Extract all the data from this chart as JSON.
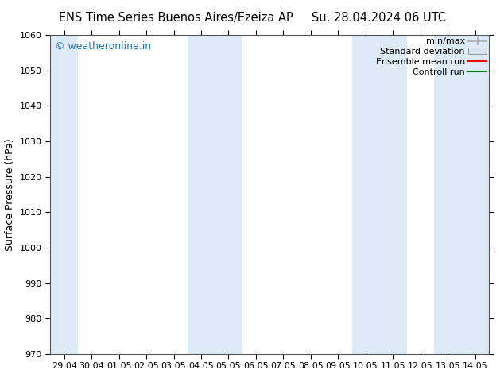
{
  "title_left": "ENS Time Series Buenos Aires/Ezeiza AP",
  "title_right": "Su. 28.04.2024 06 UTC",
  "ylabel": "Surface Pressure (hPa)",
  "ylim": [
    970,
    1060
  ],
  "yticks": [
    970,
    980,
    990,
    1000,
    1010,
    1020,
    1030,
    1040,
    1050,
    1060
  ],
  "xtick_labels": [
    "29.04",
    "30.04",
    "01.05",
    "02.05",
    "03.05",
    "04.05",
    "05.05",
    "06.05",
    "07.05",
    "08.05",
    "09.05",
    "10.05",
    "11.05",
    "12.05",
    "13.05",
    "14.05"
  ],
  "xtick_positions": [
    0,
    1,
    2,
    3,
    4,
    5,
    6,
    7,
    8,
    9,
    10,
    11,
    12,
    13,
    14,
    15
  ],
  "xlim": [
    -0.5,
    15.5
  ],
  "shaded_regions": [
    {
      "xmin": -0.5,
      "xmax": 0.5,
      "color": "#ddeaf7"
    },
    {
      "xmin": 4.5,
      "xmax": 6.5,
      "color": "#ddeaf7"
    },
    {
      "xmin": 10.5,
      "xmax": 12.5,
      "color": "#ddeaf7"
    },
    {
      "xmin": 13.5,
      "xmax": 15.5,
      "color": "#ddeaf7"
    }
  ],
  "watermark": "© weatheronline.in",
  "watermark_color": "#1a7abf",
  "background_color": "#ffffff",
  "legend_labels": [
    "min/max",
    "Standard deviation",
    "Ensemble mean run",
    "Controll run"
  ],
  "legend_colors": [
    "#aaaaaa",
    "#d0dce8",
    "#ff0000",
    "#008000"
  ],
  "font_size_title": 10.5,
  "font_size_axis": 9,
  "font_size_tick": 8,
  "font_size_legend": 8,
  "font_size_watermark": 9
}
